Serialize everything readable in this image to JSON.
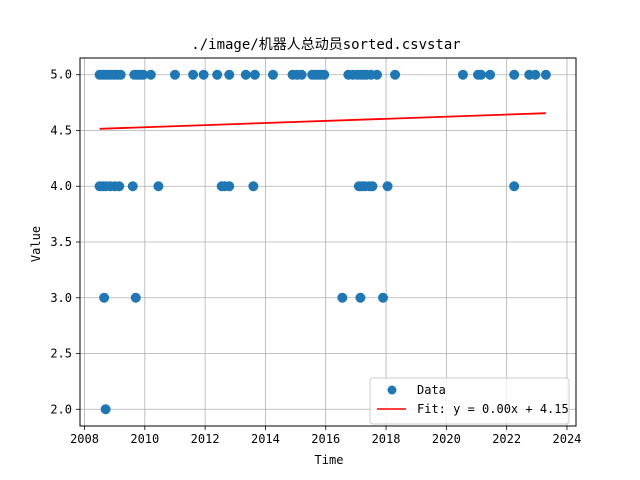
{
  "chart_data": {
    "type": "scatter",
    "title": "./image/机器人总动员sorted.csvstar",
    "xlabel": "Time",
    "ylabel": "Value",
    "xlim": [
      2007.85,
      2024.3
    ],
    "ylim": [
      1.85,
      5.15
    ],
    "xticks": [
      2008,
      2010,
      2012,
      2014,
      2016,
      2018,
      2020,
      2022,
      2024
    ],
    "xtick_labels": [
      "2008",
      "2010",
      "2012",
      "2014",
      "2016",
      "2018",
      "2020",
      "2022",
      "2024"
    ],
    "yticks": [
      2.0,
      2.5,
      3.0,
      3.5,
      4.0,
      4.5,
      5.0
    ],
    "ytick_labels": [
      "2.0",
      "2.5",
      "3.0",
      "3.5",
      "4.0",
      "4.5",
      "5.0"
    ],
    "grid": true,
    "legend_position": "bottom-right",
    "colors": {
      "data": "#1f77b4",
      "fit": "#ff0000"
    },
    "series": [
      {
        "name": "Data",
        "kind": "scatter",
        "points": [
          [
            2008.5,
            5
          ],
          [
            2008.6,
            5
          ],
          [
            2008.7,
            5
          ],
          [
            2008.8,
            5
          ],
          [
            2008.9,
            5
          ],
          [
            2009.0,
            5
          ],
          [
            2009.1,
            5
          ],
          [
            2009.2,
            5
          ],
          [
            2009.65,
            5
          ],
          [
            2009.75,
            5
          ],
          [
            2009.85,
            5
          ],
          [
            2009.95,
            5
          ],
          [
            2010.2,
            5
          ],
          [
            2011.0,
            5
          ],
          [
            2011.6,
            5
          ],
          [
            2011.95,
            5
          ],
          [
            2012.4,
            5
          ],
          [
            2012.8,
            5
          ],
          [
            2013.35,
            5
          ],
          [
            2013.65,
            5
          ],
          [
            2014.25,
            5
          ],
          [
            2014.9,
            5
          ],
          [
            2015.05,
            5
          ],
          [
            2015.2,
            5
          ],
          [
            2015.55,
            5
          ],
          [
            2015.65,
            5
          ],
          [
            2015.75,
            5
          ],
          [
            2015.85,
            5
          ],
          [
            2015.95,
            5
          ],
          [
            2016.75,
            5
          ],
          [
            2016.9,
            5
          ],
          [
            2017.05,
            5
          ],
          [
            2017.15,
            5
          ],
          [
            2017.25,
            5
          ],
          [
            2017.35,
            5
          ],
          [
            2017.5,
            5
          ],
          [
            2017.7,
            5
          ],
          [
            2018.3,
            5
          ],
          [
            2020.55,
            5
          ],
          [
            2021.05,
            5
          ],
          [
            2021.15,
            5
          ],
          [
            2021.45,
            5
          ],
          [
            2022.25,
            5
          ],
          [
            2022.75,
            5
          ],
          [
            2022.95,
            5
          ],
          [
            2023.3,
            5
          ],
          [
            2008.5,
            4
          ],
          [
            2008.6,
            4
          ],
          [
            2008.7,
            4
          ],
          [
            2008.85,
            4
          ],
          [
            2009.0,
            4
          ],
          [
            2009.15,
            4
          ],
          [
            2009.6,
            4
          ],
          [
            2010.45,
            4
          ],
          [
            2012.55,
            4
          ],
          [
            2012.65,
            4
          ],
          [
            2012.8,
            4
          ],
          [
            2013.6,
            4
          ],
          [
            2017.1,
            4
          ],
          [
            2017.2,
            4
          ],
          [
            2017.3,
            4
          ],
          [
            2017.45,
            4
          ],
          [
            2017.55,
            4
          ],
          [
            2018.05,
            4
          ],
          [
            2022.25,
            4
          ],
          [
            2008.65,
            3
          ],
          [
            2009.7,
            3
          ],
          [
            2016.55,
            3
          ],
          [
            2017.15,
            3
          ],
          [
            2017.9,
            3
          ],
          [
            2008.7,
            2
          ]
        ]
      },
      {
        "name": "Fit: y = 0.00x + 4.15",
        "kind": "line",
        "points": [
          [
            2008.5,
            4.515
          ],
          [
            2023.3,
            4.655
          ]
        ]
      }
    ]
  }
}
